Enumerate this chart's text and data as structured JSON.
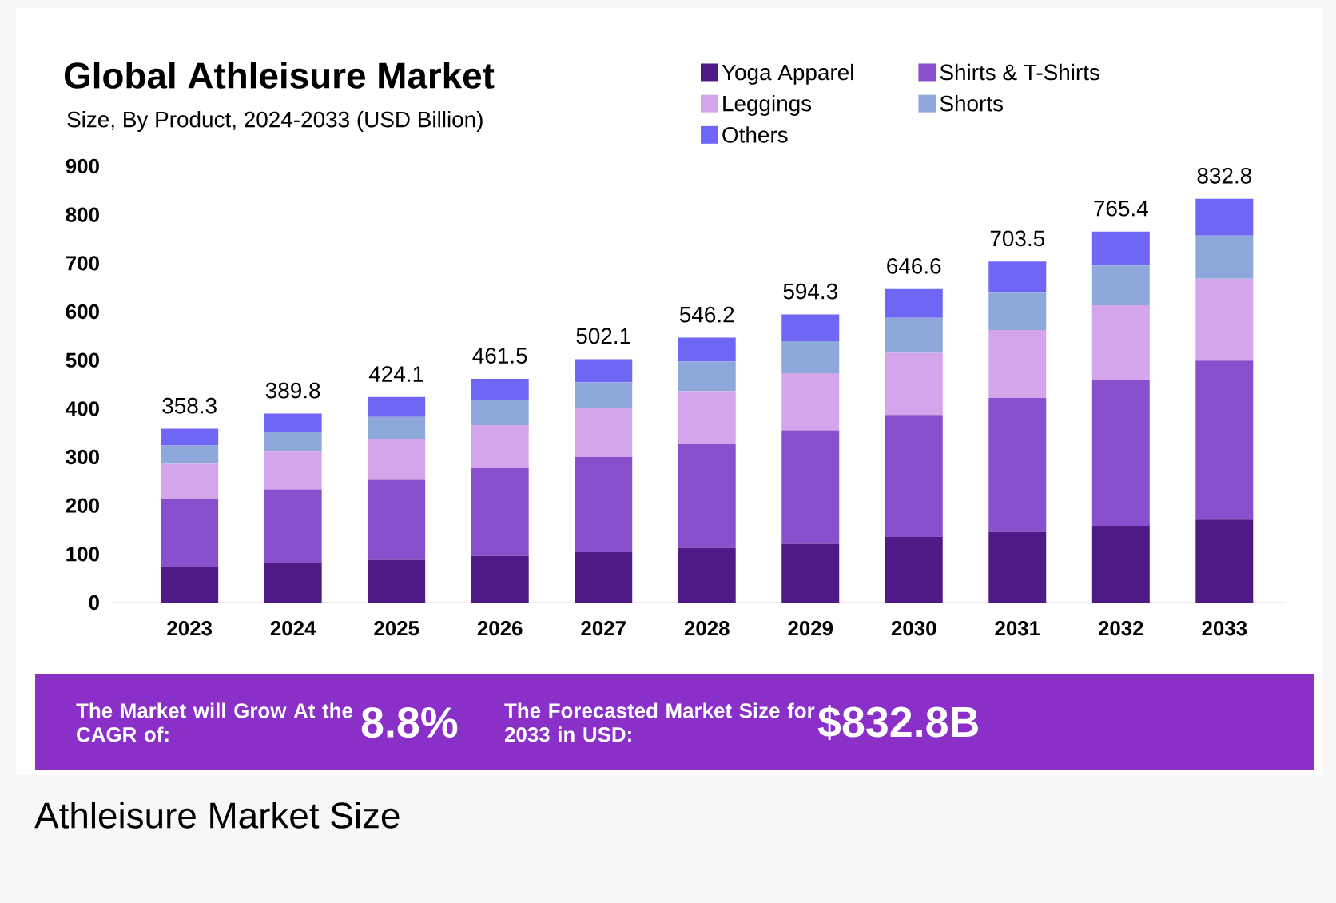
{
  "chart_data": {
    "type": "bar",
    "stacked": true,
    "title": "Global Athleisure Market",
    "subtitle": "Size, By Product, 2024-2033 (USD Billion)",
    "categories": [
      "2023",
      "2024",
      "2025",
      "2026",
      "2027",
      "2028",
      "2029",
      "2030",
      "2031",
      "2032",
      "2033"
    ],
    "series": [
      {
        "name": "Yoga Apparel",
        "color": "#4f1a85",
        "values": [
          74,
          81,
          88,
          96,
          104,
          113,
          121,
          135,
          146,
          158,
          171
        ]
      },
      {
        "name": "Shirts & T-Shirts",
        "color": "#8a4fcc",
        "values": [
          139,
          152,
          165,
          181,
          196,
          214,
          234,
          252,
          276,
          301,
          328
        ]
      },
      {
        "name": "Leggings",
        "color": "#d4a5ea",
        "values": [
          73,
          78,
          85,
          89,
          101,
          109,
          118,
          128,
          140,
          154,
          169
        ]
      },
      {
        "name": "Shorts",
        "color": "#8fa8db",
        "values": [
          38,
          41,
          45,
          52,
          53,
          61,
          66,
          72,
          77,
          82,
          89
        ]
      },
      {
        "name": "Others",
        "color": "#6f66f5",
        "values": [
          34.3,
          37.8,
          41.1,
          43.5,
          48.1,
          49.2,
          55.3,
          59.6,
          64.5,
          70.4,
          75.8
        ]
      }
    ],
    "totals": [
      "358.3",
      "389.8",
      "424.1",
      "461.5",
      "502.1",
      "546.2",
      "594.3",
      "646.6",
      "703.5",
      "765.4",
      "832.8"
    ],
    "ylim": [
      0,
      900
    ],
    "yticks": [
      0,
      100,
      200,
      300,
      400,
      500,
      600,
      700,
      800,
      900
    ],
    "legend": "top right",
    "annotations": [
      "The Market will Grow At the CAGR of:",
      "8.8%",
      "The Forecasted Market Size for 2033 in USD:",
      "$832.8B",
      "Athleisure Market Size"
    ]
  }
}
